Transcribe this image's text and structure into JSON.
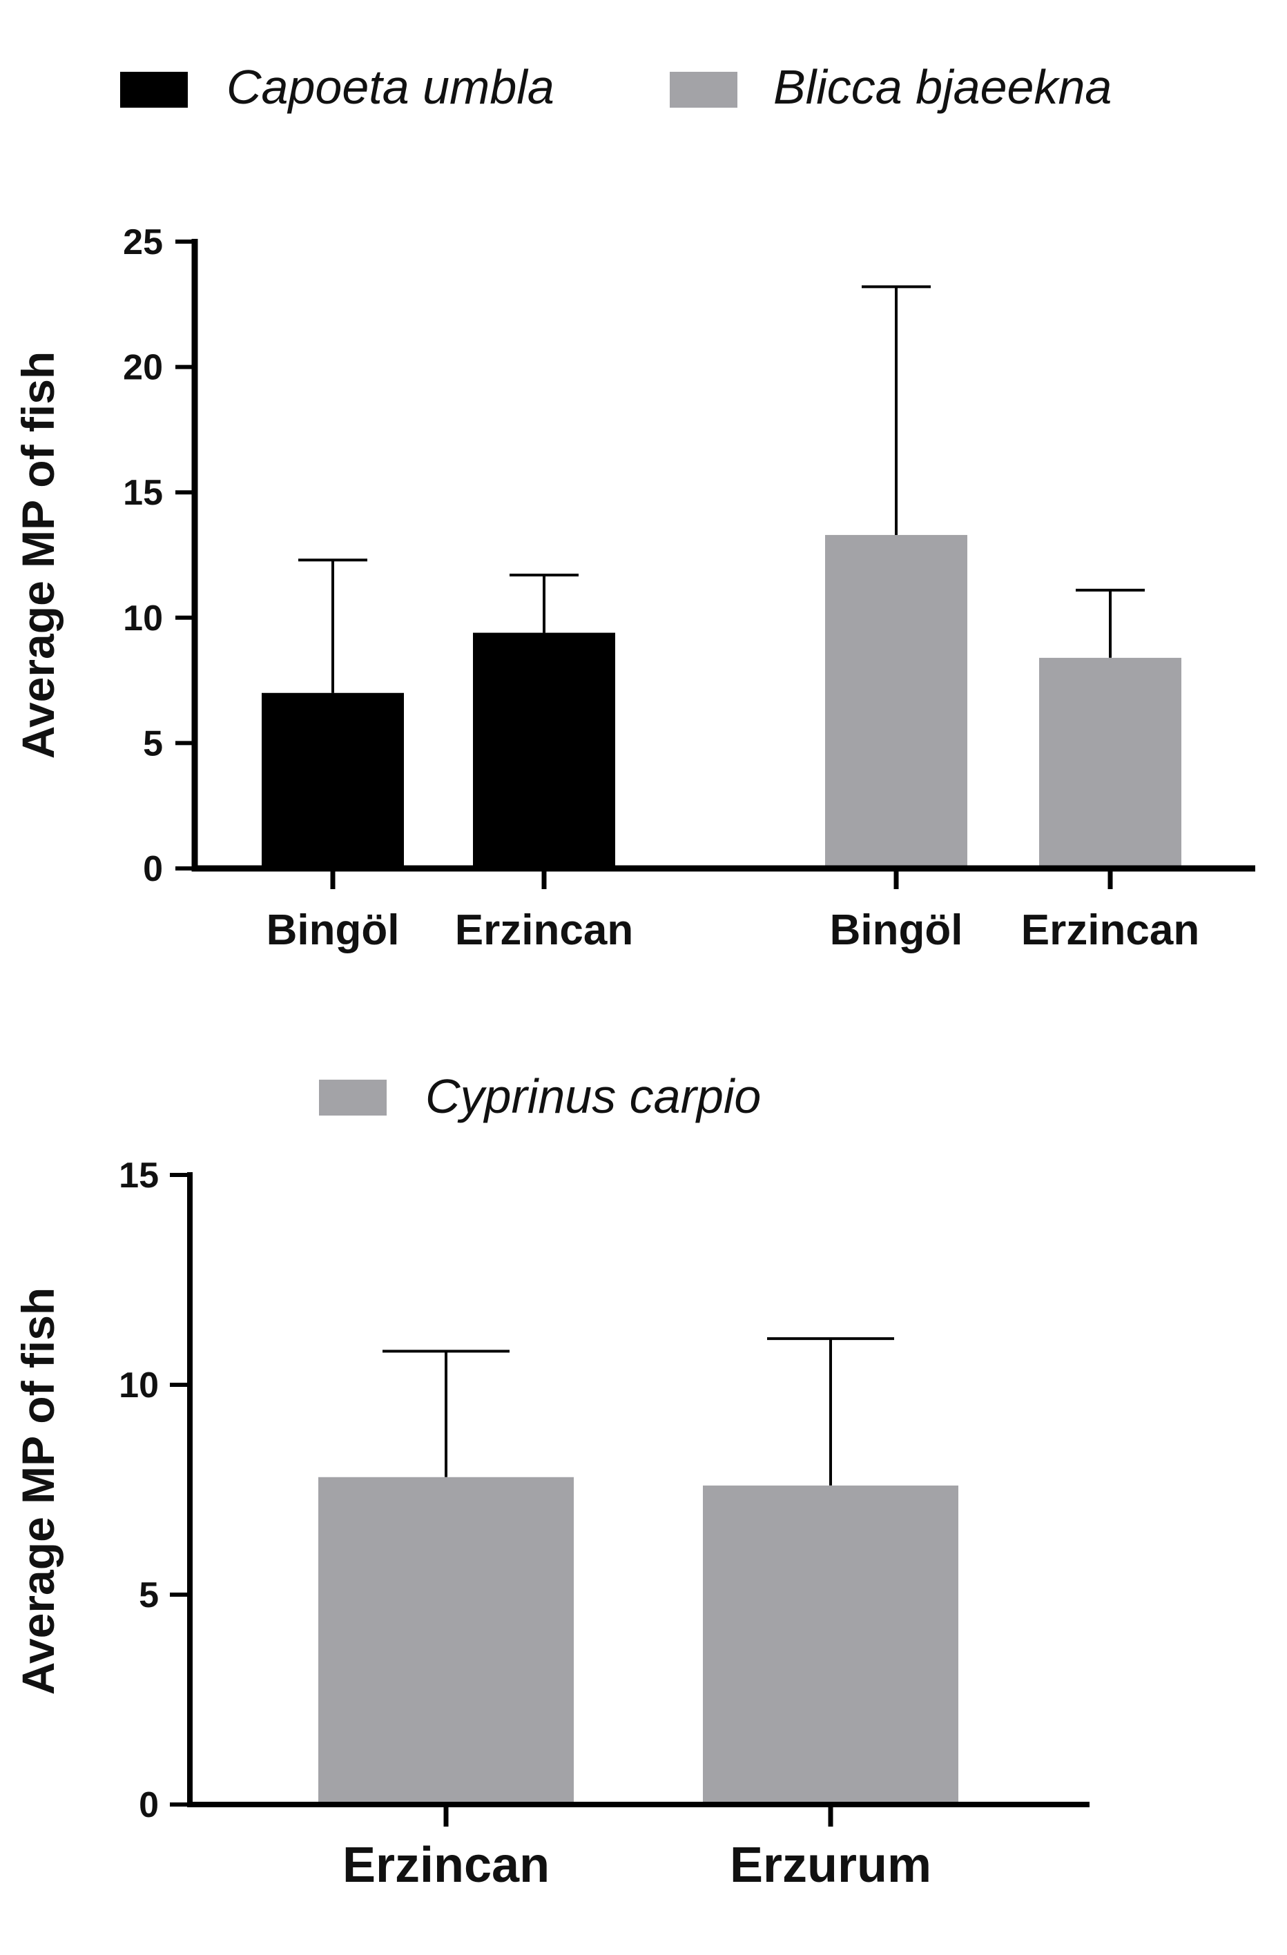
{
  "chart_data": [
    {
      "type": "bar",
      "title": "",
      "ylabel": "Average MP of fish",
      "xlabel": "",
      "ylim": [
        0,
        25
      ],
      "yticks": [
        0,
        5,
        10,
        15,
        20,
        25
      ],
      "legend_position": "top",
      "groups": [
        {
          "name": "Capoeta umbla",
          "color": "#000000",
          "categories": [
            "Bingöl",
            "Erzincan"
          ],
          "values": [
            7.0,
            9.4
          ],
          "errors": [
            5.3,
            2.3
          ]
        },
        {
          "name": "Blicca bjaeekna",
          "color": "#a3a3a7",
          "categories": [
            "Bingöl",
            "Erzincan"
          ],
          "values": [
            13.3,
            8.4
          ],
          "errors": [
            9.9,
            2.7
          ]
        }
      ]
    },
    {
      "type": "bar",
      "title": "",
      "ylabel": "Average MP of fish",
      "xlabel": "",
      "ylim": [
        0,
        15
      ],
      "yticks": [
        0,
        5,
        10,
        15
      ],
      "legend_position": "top",
      "groups": [
        {
          "name": "Cyprinus carpio",
          "color": "#a3a3a7",
          "categories": [
            "Erzincan",
            "Erzurum"
          ],
          "values": [
            7.8,
            7.6
          ],
          "errors": [
            3.0,
            3.5
          ]
        }
      ]
    }
  ]
}
